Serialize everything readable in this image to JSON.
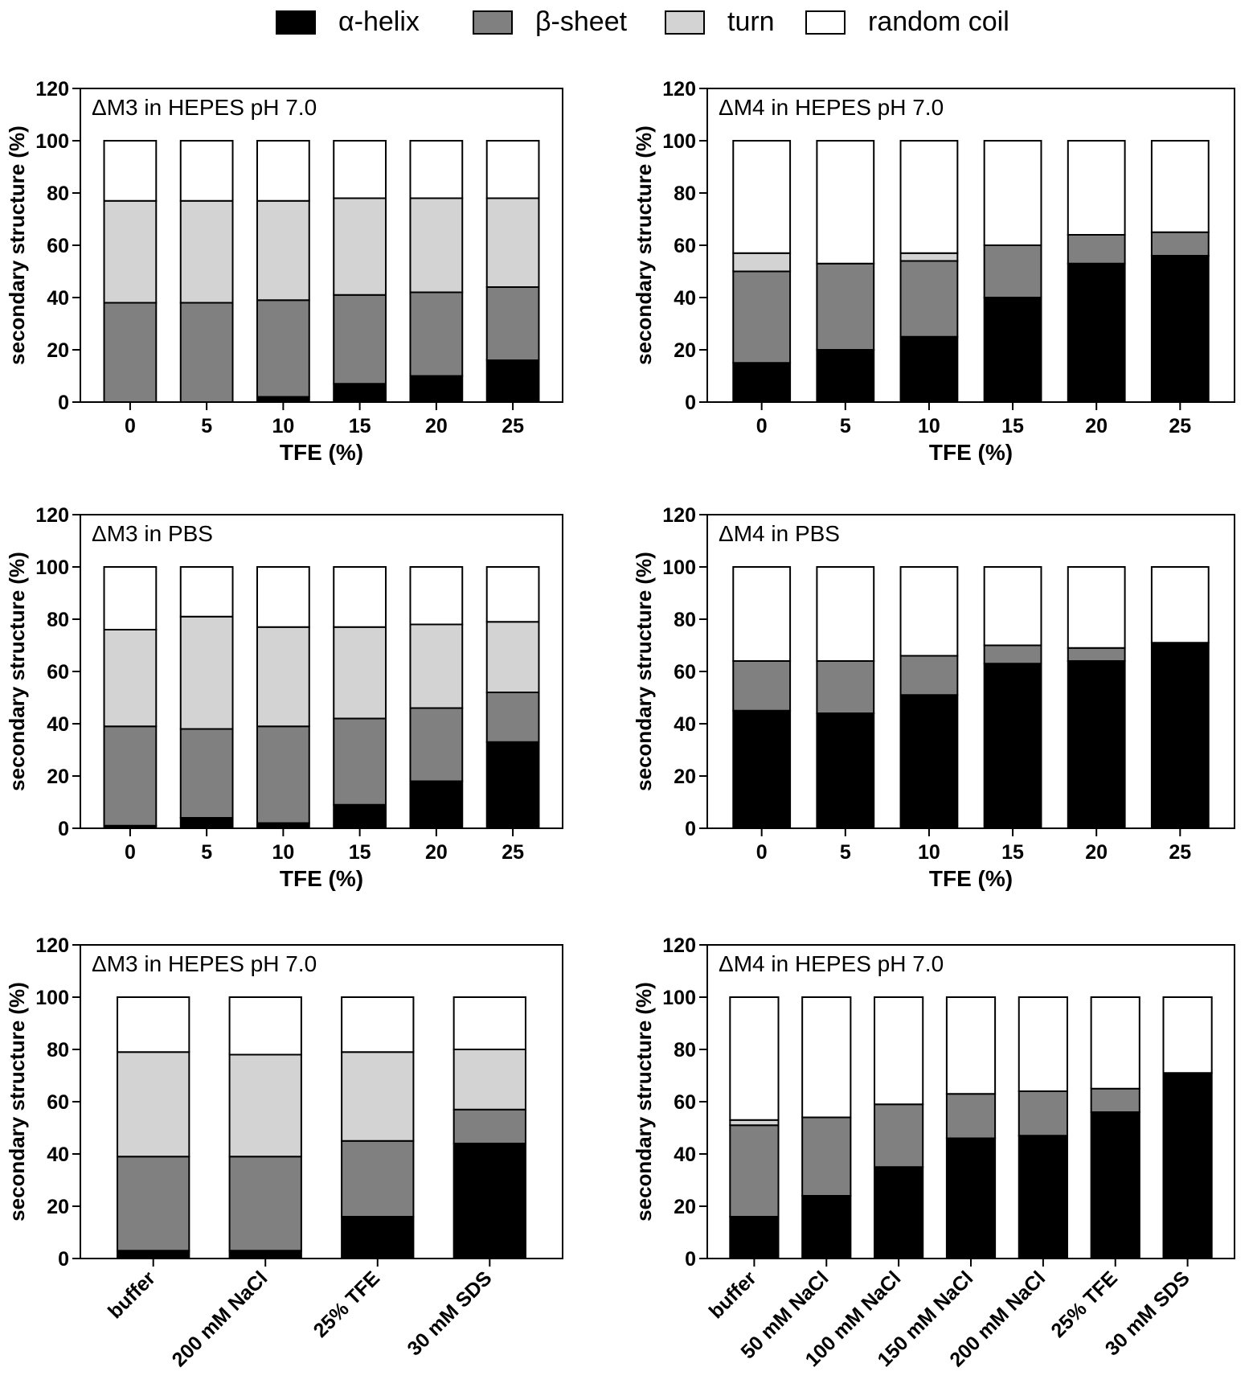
{
  "legend": {
    "items": [
      {
        "label": "α-helix",
        "color": "#000000"
      },
      {
        "label": "β-sheet",
        "color": "#808080"
      },
      {
        "label": "turn",
        "color": "#d3d3d3"
      },
      {
        "label": "random coil",
        "color": "#ffffff"
      }
    ]
  },
  "chart_data": [
    {
      "type": "bar",
      "stacked": true,
      "title": "ΔM3 in HEPES pH 7.0",
      "xlabel": "TFE (%)",
      "ylabel": "secondary structure (%)",
      "ylim": [
        0,
        120
      ],
      "yticks": [
        0,
        20,
        40,
        60,
        80,
        100,
        120
      ],
      "rotate_labels": false,
      "categories": [
        "0",
        "5",
        "10",
        "15",
        "20",
        "25"
      ],
      "series": [
        {
          "name": "α-helix",
          "values": [
            0,
            0,
            2,
            7,
            10,
            16
          ]
        },
        {
          "name": "β-sheet",
          "values": [
            38,
            38,
            37,
            34,
            32,
            28
          ]
        },
        {
          "name": "turn",
          "values": [
            39,
            39,
            38,
            37,
            36,
            34
          ]
        },
        {
          "name": "random coil",
          "values": [
            23,
            23,
            23,
            22,
            22,
            22
          ]
        }
      ]
    },
    {
      "type": "bar",
      "stacked": true,
      "title": "ΔM4 in HEPES pH 7.0",
      "xlabel": "TFE (%)",
      "ylabel": "secondary structure (%)",
      "ylim": [
        0,
        120
      ],
      "yticks": [
        0,
        20,
        40,
        60,
        80,
        100,
        120
      ],
      "rotate_labels": false,
      "categories": [
        "0",
        "5",
        "10",
        "15",
        "20",
        "25"
      ],
      "series": [
        {
          "name": "α-helix",
          "values": [
            15,
            20,
            25,
            40,
            53,
            56
          ]
        },
        {
          "name": "β-sheet",
          "values": [
            35,
            33,
            29,
            20,
            11,
            9
          ]
        },
        {
          "name": "turn",
          "values": [
            7,
            0,
            3,
            0,
            0,
            0
          ]
        },
        {
          "name": "random coil",
          "values": [
            43,
            47,
            43,
            40,
            36,
            35
          ]
        }
      ]
    },
    {
      "type": "bar",
      "stacked": true,
      "title": "ΔM3 in PBS",
      "xlabel": "TFE (%)",
      "ylabel": "secondary structure (%)",
      "ylim": [
        0,
        120
      ],
      "yticks": [
        0,
        20,
        40,
        60,
        80,
        100,
        120
      ],
      "rotate_labels": false,
      "categories": [
        "0",
        "5",
        "10",
        "15",
        "20",
        "25"
      ],
      "series": [
        {
          "name": "α-helix",
          "values": [
            1,
            4,
            2,
            9,
            18,
            33
          ]
        },
        {
          "name": "β-sheet",
          "values": [
            38,
            34,
            37,
            33,
            28,
            19
          ]
        },
        {
          "name": "turn",
          "values": [
            37,
            43,
            38,
            35,
            32,
            27
          ]
        },
        {
          "name": "random coil",
          "values": [
            24,
            19,
            23,
            23,
            22,
            21
          ]
        }
      ]
    },
    {
      "type": "bar",
      "stacked": true,
      "title": "ΔM4 in PBS",
      "xlabel": "TFE (%)",
      "ylabel": "secondary structure (%)",
      "ylim": [
        0,
        120
      ],
      "yticks": [
        0,
        20,
        40,
        60,
        80,
        100,
        120
      ],
      "rotate_labels": false,
      "categories": [
        "0",
        "5",
        "10",
        "15",
        "20",
        "25"
      ],
      "series": [
        {
          "name": "α-helix",
          "values": [
            45,
            44,
            51,
            63,
            64,
            71
          ]
        },
        {
          "name": "β-sheet",
          "values": [
            19,
            20,
            15,
            7,
            5,
            0
          ]
        },
        {
          "name": "turn",
          "values": [
            0,
            0,
            0,
            0,
            0,
            0
          ]
        },
        {
          "name": "random coil",
          "values": [
            36,
            36,
            34,
            30,
            31,
            29
          ]
        }
      ]
    },
    {
      "type": "bar",
      "stacked": true,
      "title": "ΔM3 in HEPES pH 7.0",
      "xlabel": "",
      "ylabel": "secondary structure (%)",
      "ylim": [
        0,
        120
      ],
      "yticks": [
        0,
        20,
        40,
        60,
        80,
        100,
        120
      ],
      "rotate_labels": true,
      "categories": [
        "buffer",
        "200 mM NaCl",
        "25% TFE",
        "30 mM SDS"
      ],
      "series": [
        {
          "name": "α-helix",
          "values": [
            3,
            3,
            16,
            44
          ]
        },
        {
          "name": "β-sheet",
          "values": [
            36,
            36,
            29,
            13
          ]
        },
        {
          "name": "turn",
          "values": [
            40,
            39,
            34,
            23
          ]
        },
        {
          "name": "random coil",
          "values": [
            21,
            22,
            21,
            20
          ]
        }
      ]
    },
    {
      "type": "bar",
      "stacked": true,
      "title": "ΔM4 in HEPES pH 7.0",
      "xlabel": "",
      "ylabel": "secondary structure (%)",
      "ylim": [
        0,
        120
      ],
      "yticks": [
        0,
        20,
        40,
        60,
        80,
        100,
        120
      ],
      "rotate_labels": true,
      "categories": [
        "buffer",
        "50 mM NaCl",
        "100 mM NaCl",
        "150 mM NaCl",
        "200 mM NaCl",
        "25% TFE",
        "30 mM SDS"
      ],
      "series": [
        {
          "name": "α-helix",
          "values": [
            16,
            24,
            35,
            46,
            47,
            56,
            71
          ]
        },
        {
          "name": "β-sheet",
          "values": [
            35,
            30,
            24,
            17,
            17,
            9,
            0
          ]
        },
        {
          "name": "turn",
          "values": [
            2,
            0,
            0,
            0,
            0,
            0,
            0
          ]
        },
        {
          "name": "random coil",
          "values": [
            47,
            46,
            41,
            37,
            36,
            35,
            29
          ]
        }
      ]
    }
  ]
}
